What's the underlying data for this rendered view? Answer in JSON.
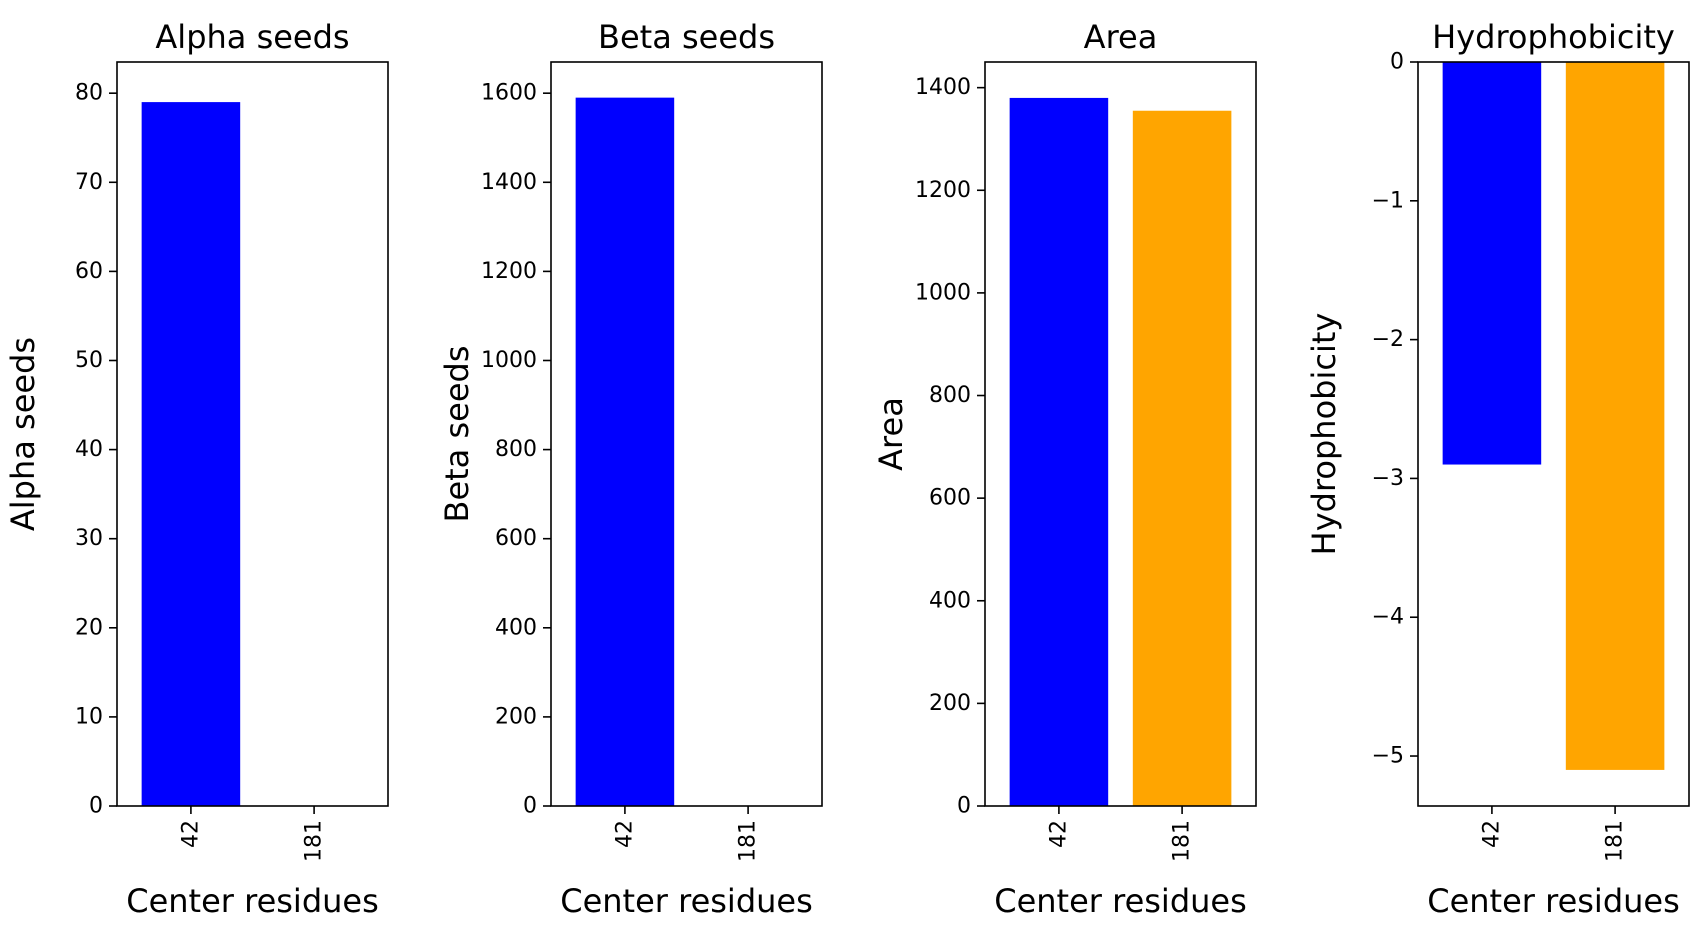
{
  "chart_data": [
    {
      "type": "bar",
      "title": "Alpha seeds",
      "xlabel": "Center residues",
      "ylabel": "Alpha seeds",
      "categories": [
        "42",
        "181"
      ],
      "values": [
        79,
        0
      ],
      "bar_colors": [
        "#0000ff",
        "#ffa500"
      ],
      "ylim": [
        0,
        83.5
      ],
      "yticks": [
        0,
        10,
        20,
        30,
        40,
        50,
        60,
        70,
        80
      ]
    },
    {
      "type": "bar",
      "title": "Beta seeds",
      "xlabel": "Center residues",
      "ylabel": "Beta seeds",
      "categories": [
        "42",
        "181"
      ],
      "values": [
        1590,
        0
      ],
      "bar_colors": [
        "#0000ff",
        "#ffa500"
      ],
      "ylim": [
        0,
        1670
      ],
      "yticks": [
        0,
        200,
        400,
        600,
        800,
        1000,
        1200,
        1400,
        1600
      ]
    },
    {
      "type": "bar",
      "title": "Area",
      "xlabel": "Center residues",
      "ylabel": "Area",
      "categories": [
        "42",
        "181"
      ],
      "values": [
        1380,
        1355
      ],
      "bar_colors": [
        "#0000ff",
        "#ffa500"
      ],
      "ylim": [
        0,
        1450
      ],
      "yticks": [
        0,
        200,
        400,
        600,
        800,
        1000,
        1200,
        1400
      ]
    },
    {
      "type": "bar",
      "title": "Hydrophobicity",
      "xlabel": "Center residues",
      "ylabel": "Hydrophobicity",
      "categories": [
        "42",
        "181"
      ],
      "values": [
        -2.9,
        -5.1
      ],
      "bar_colors": [
        "#0000ff",
        "#ffa500"
      ],
      "ylim": [
        -5.36,
        0
      ],
      "yticks": [
        0,
        -1,
        -2,
        -3,
        -4,
        -5
      ],
      "ytick_labels": [
        "0",
        "−1",
        "−2",
        "−3",
        "−4",
        "−5"
      ]
    }
  ]
}
